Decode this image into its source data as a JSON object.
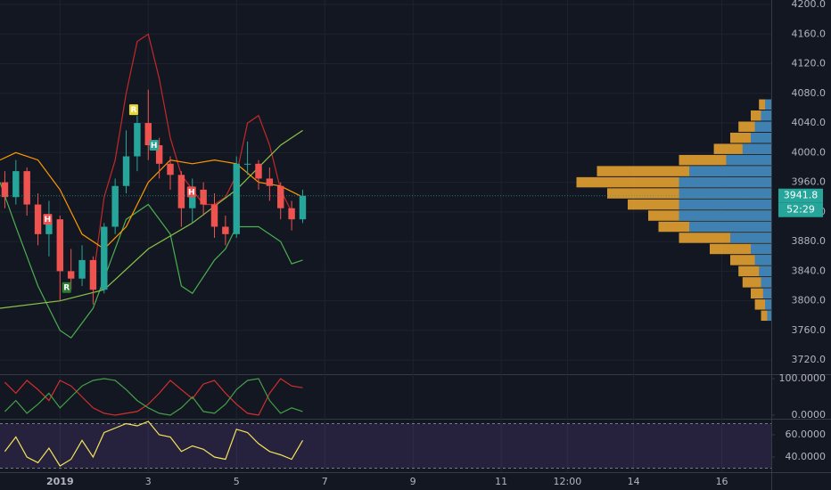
{
  "chart_data": [
    {
      "type": "candlestick",
      "x": [
        -0.25,
        0,
        0.25,
        0.5,
        0.75,
        1,
        1.25,
        1.5,
        1.75,
        2,
        2.25,
        2.5,
        2.75,
        3,
        3.25,
        3.5,
        3.75,
        4,
        4.25,
        4.5,
        4.75,
        5,
        5.25,
        5.5,
        5.75,
        6,
        6.25,
        6.5
      ],
      "open": [
        3960,
        3940,
        3975,
        3930,
        3890,
        3910,
        3840,
        3830,
        3855,
        3815,
        3900,
        3955,
        3995,
        4040,
        4010,
        3985,
        3970,
        3925,
        3950,
        3930,
        3900,
        3890,
        3985,
        3985,
        3965,
        3955,
        3925,
        3910
      ],
      "high": [
        3975,
        3990,
        3980,
        3945,
        3935,
        3915,
        3870,
        3875,
        3860,
        3905,
        3965,
        4030,
        4050,
        4085,
        4020,
        3995,
        3975,
        3965,
        3960,
        3945,
        3915,
        3995,
        4015,
        3990,
        3980,
        3960,
        3935,
        3950
      ],
      "low": [
        3925,
        3930,
        3915,
        3875,
        3860,
        3800,
        3815,
        3820,
        3795,
        3810,
        3890,
        3945,
        3975,
        3990,
        3965,
        3950,
        3900,
        3905,
        3915,
        3885,
        3875,
        3885,
        3970,
        3950,
        3935,
        3910,
        3895,
        3905
      ],
      "close": [
        3940,
        3975,
        3930,
        3890,
        3910,
        3840,
        3830,
        3855,
        3815,
        3900,
        3955,
        3995,
        4040,
        4010,
        3985,
        3970,
        3925,
        3950,
        3930,
        3900,
        3890,
        3985,
        3985,
        3965,
        3955,
        3925,
        3910,
        3941.8
      ],
      "up_color": "#26a69a",
      "down_color": "#ef5350",
      "lines": [
        {
          "color": "#c62828",
          "x": [
            1.75,
            2,
            2.25,
            2.5,
            2.75,
            3,
            3.25,
            3.5,
            3.75,
            4,
            4.25,
            4.5,
            4.75,
            5,
            5.25,
            5.5,
            5.75,
            6,
            6.25
          ],
          "values": [
            3830,
            3940,
            3990,
            4080,
            4150,
            4160,
            4100,
            4020,
            3970,
            3950,
            3930,
            3930,
            3940,
            3970,
            4040,
            4050,
            4010,
            3950,
            3920
          ]
        },
        {
          "color": "#4caf50",
          "x": [
            -0.36,
            0,
            0.25,
            0.5,
            0.75,
            1,
            1.25,
            1.5,
            1.75,
            2,
            2.5,
            3,
            3.5,
            3.75,
            4,
            4.5,
            4.75,
            5,
            5.5,
            6,
            6.25,
            6.5
          ],
          "values": [
            3960,
            3900,
            3860,
            3820,
            3790,
            3760,
            3750,
            3770,
            3790,
            3830,
            3910,
            3930,
            3890,
            3820,
            3810,
            3855,
            3870,
            3900,
            3900,
            3880,
            3850,
            3855
          ]
        },
        {
          "color": "#8bc34a",
          "x": [
            -0.36,
            1,
            2,
            3,
            4,
            5,
            6,
            6.5
          ],
          "values": [
            3790,
            3800,
            3815,
            3870,
            3905,
            3950,
            4010,
            4030
          ]
        },
        {
          "color": "#ff9800",
          "x": [
            -0.36,
            0,
            0.5,
            1,
            1.5,
            2,
            2.5,
            3,
            3.5,
            4,
            4.5,
            5,
            5.5,
            6,
            6.5
          ],
          "values": [
            3990,
            4000,
            3990,
            3950,
            3890,
            3870,
            3900,
            3960,
            3990,
            3985,
            3990,
            3985,
            3960,
            3955,
            3940
          ]
        }
      ],
      "profile": {
        "prices": [
          4065,
          4050,
          4035,
          4020,
          4005,
          3990,
          3975,
          3960,
          3945,
          3930,
          3915,
          3900,
          3885,
          3870,
          3855,
          3840,
          3825,
          3810,
          3795,
          3780
        ],
        "total": [
          6,
          10,
          16,
          20,
          28,
          45,
          85,
          95,
          80,
          70,
          60,
          55,
          45,
          30,
          20,
          16,
          14,
          10,
          8,
          5
        ],
        "blue": [
          3,
          5,
          8,
          10,
          14,
          22,
          40,
          45,
          45,
          45,
          45,
          40,
          20,
          10,
          8,
          6,
          5,
          4,
          3,
          2
        ],
        "xlim": [
          0,
          100
        ],
        "color": "#f0a830",
        "blue_color": "#2f7fc1"
      },
      "markers": [
        {
          "x": 0.72,
          "price": 3910,
          "label": "H",
          "color": "#ef5350"
        },
        {
          "x": 3.13,
          "price": 4010,
          "label": "H",
          "color": "#26a69a"
        },
        {
          "x": 3.98,
          "price": 3947,
          "label": "H",
          "color": "#ef5350"
        },
        {
          "x": 2.67,
          "price": 4058,
          "label": "R",
          "color": "#e8d630"
        },
        {
          "x": 1.15,
          "price": 3818,
          "label": "R",
          "color": "#2e7d32"
        }
      ],
      "last_price": 3941.8,
      "countdown": "52:29",
      "xlim": [
        -0.36,
        17.12
      ],
      "ylim": [
        3701,
        4206
      ],
      "yticks": [
        {
          "value": 4200,
          "label": "4200.0"
        },
        {
          "value": 4160,
          "label": "4160.0"
        },
        {
          "value": 4120,
          "label": "4120.0"
        },
        {
          "value": 4080,
          "label": "4080.0"
        },
        {
          "value": 4040,
          "label": "4040.0"
        },
        {
          "value": 4000,
          "label": "4000.0"
        },
        {
          "value": 3960,
          "label": "3960.0"
        },
        {
          "value": 3920,
          "label": "3920.0"
        },
        {
          "value": 3880,
          "label": "3880.0"
        },
        {
          "value": 3840,
          "label": "3840.0"
        },
        {
          "value": 3800,
          "label": "3800.0"
        },
        {
          "value": 3760,
          "label": "3760.0"
        },
        {
          "value": 3720,
          "label": "3720.0"
        }
      ],
      "xticks": [
        {
          "value": 1,
          "label": "2019"
        },
        3,
        5,
        7,
        9,
        11,
        {
          "value": 12.5,
          "label": "12:00"
        },
        14,
        16
      ],
      "grid": true
    },
    {
      "type": "line",
      "x": [
        -0.25,
        0,
        0.25,
        0.5,
        0.75,
        1,
        1.25,
        1.5,
        1.75,
        2,
        2.25,
        2.5,
        2.75,
        3,
        3.25,
        3.5,
        3.75,
        4,
        4.25,
        4.5,
        4.75,
        5,
        5.25,
        5.5,
        5.75,
        6,
        6.25,
        6.5
      ],
      "series": [
        {
          "color": "#d32f2f",
          "values": [
            90,
            60,
            95,
            70,
            40,
            95,
            80,
            50,
            20,
            5,
            0,
            5,
            10,
            30,
            60,
            95,
            70,
            45,
            85,
            95,
            60,
            30,
            5,
            0,
            60,
            100,
            80,
            75
          ]
        },
        {
          "color": "#43a047",
          "values": [
            10,
            40,
            5,
            30,
            60,
            20,
            50,
            80,
            95,
            100,
            95,
            70,
            40,
            20,
            5,
            0,
            20,
            50,
            10,
            5,
            30,
            70,
            95,
            100,
            40,
            5,
            20,
            10
          ]
        }
      ],
      "ylim": [
        -9.8,
        112.2
      ],
      "yticks": [
        {
          "value": 100,
          "label": "100.0000"
        },
        {
          "value": 0,
          "label": "0.0000"
        }
      ]
    },
    {
      "type": "line",
      "x": [
        -0.25,
        0,
        0.25,
        0.5,
        0.75,
        1,
        1.25,
        1.5,
        1.75,
        2,
        2.25,
        2.5,
        2.75,
        3,
        3.25,
        3.5,
        3.75,
        4,
        4.25,
        4.5,
        4.75,
        5,
        5.25,
        5.5,
        5.75,
        6,
        6.25,
        6.5
      ],
      "series": [
        {
          "color": "#f5e35a",
          "values": [
            45,
            58,
            40,
            35,
            48,
            32,
            38,
            55,
            40,
            62,
            66,
            70,
            68,
            72,
            60,
            58,
            45,
            50,
            47,
            40,
            38,
            65,
            62,
            52,
            45,
            42,
            38,
            55
          ]
        }
      ],
      "band": [
        30,
        70
      ],
      "band_color": "#7e57c2",
      "ylim": [
        26.4,
        74.4
      ],
      "yticks": [
        {
          "value": 60,
          "label": "60.0000"
        },
        {
          "value": 40,
          "label": "40.0000"
        }
      ]
    }
  ]
}
